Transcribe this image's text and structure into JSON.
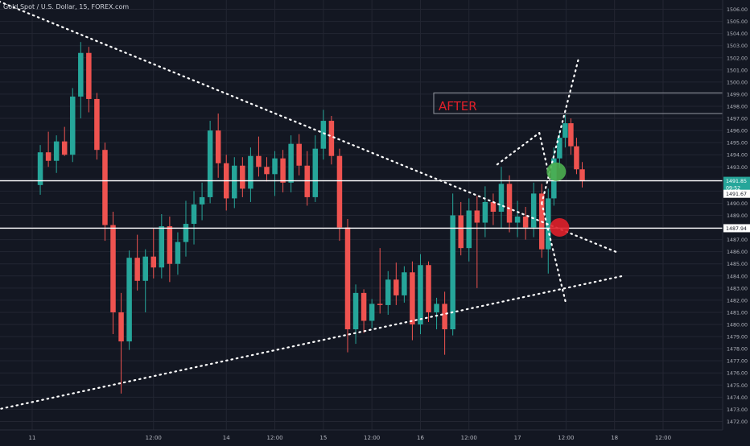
{
  "chart_data": {
    "type": "candlestick",
    "title": "Gold Spot / U.S. Dollar, 15, FOREX.com",
    "annotation_label": "AFTER",
    "colors": {
      "background": "#131722",
      "grid": "#232632",
      "up": "#26a69a",
      "down": "#ef5350",
      "axis_text": "#b2b5be",
      "level_line": "#ffffff",
      "green_marker": "#4caf50",
      "red_marker": "#e0202a",
      "last_price_badge": "#26a69a"
    },
    "y_ticks": [
      1472,
      1473,
      1474,
      1475,
      1476,
      1477,
      1478,
      1479,
      1480,
      1481,
      1482,
      1483,
      1484,
      1485,
      1486,
      1487,
      1488,
      1489,
      1490,
      1491,
      1492,
      1493,
      1494,
      1495,
      1496,
      1497,
      1498,
      1499,
      1500,
      1501,
      1502,
      1503,
      1504,
      1505,
      1506
    ],
    "ylim": [
      1471.5,
      1506.5
    ],
    "x_ticks": [
      {
        "label": "11",
        "t": 0
      },
      {
        "label": "12:00",
        "t": 15
      },
      {
        "label": "14",
        "t": 24
      },
      {
        "label": "12:00",
        "t": 30
      },
      {
        "label": "15",
        "t": 36
      },
      {
        "label": "12:00",
        "t": 42
      },
      {
        "label": "16",
        "t": 48
      },
      {
        "label": "12:00",
        "t": 54
      },
      {
        "label": "17",
        "t": 60
      },
      {
        "label": "12:00",
        "t": 66
      },
      {
        "label": "18",
        "t": 72
      },
      {
        "label": "12:00",
        "t": 78
      }
    ],
    "price_labels": [
      {
        "value": "1491.85",
        "price": 1491.85,
        "style": "current"
      },
      {
        "value": "09:52",
        "price": 1491.3,
        "style": "countdown"
      },
      {
        "value": "1491.67",
        "price": 1490.78,
        "style": "plain"
      },
      {
        "value": "1487.94",
        "price": 1487.94,
        "style": "plain"
      }
    ],
    "horizontal_levels": [
      1491.85,
      1487.94
    ],
    "trendlines": [
      {
        "from": [
          -6.5,
          1507.3
        ],
        "to": [
          72.5,
          1485.9
        ]
      },
      {
        "from": [
          -7,
          1472.6
        ],
        "to": [
          73,
          1484.0
        ]
      },
      {
        "from": [
          57.5,
          1493.2
        ],
        "to": [
          62.7,
          1495.8
        ]
      },
      {
        "from": [
          62.7,
          1495.8
        ],
        "to": [
          64.0,
          1492.0
        ]
      },
      {
        "from": [
          63.0,
          1490.0
        ],
        "to": [
          67.5,
          1501.8
        ]
      },
      {
        "from": [
          63.0,
          1490.0
        ],
        "to": [
          66.0,
          1481.7
        ]
      }
    ],
    "markers": [
      {
        "t": 64.8,
        "price": 1492.6,
        "color": "green_marker"
      },
      {
        "t": 65.2,
        "price": 1488.0,
        "color": "red_marker"
      }
    ],
    "annotation_box": {
      "t0": 50.0,
      "t1": 99,
      "price_top": 1499.1,
      "price_bottom": 1497.4
    },
    "ohlc": [
      [
        1,
        1491.5,
        1494.8,
        1490.7,
        1494.2
      ],
      [
        2,
        1494.2,
        1495.9,
        1493.0,
        1493.5
      ],
      [
        3,
        1493.5,
        1495.6,
        1492.5,
        1495.1
      ],
      [
        4,
        1495.1,
        1496.3,
        1493.9,
        1494.0
      ],
      [
        5,
        1494.0,
        1499.5,
        1493.4,
        1498.8
      ],
      [
        6,
        1498.8,
        1503.3,
        1497.0,
        1502.4
      ],
      [
        7,
        1502.4,
        1502.9,
        1497.5,
        1498.6
      ],
      [
        8,
        1498.6,
        1499.1,
        1493.6,
        1494.4
      ],
      [
        9,
        1494.4,
        1495.0,
        1486.9,
        1488.2
      ],
      [
        10,
        1488.2,
        1489.3,
        1479.2,
        1481.0
      ],
      [
        11,
        1481.0,
        1482.6,
        1474.3,
        1478.6
      ],
      [
        12,
        1478.6,
        1486.1,
        1477.9,
        1485.5
      ],
      [
        13,
        1485.5,
        1487.4,
        1482.8,
        1483.6
      ],
      [
        14,
        1483.6,
        1486.2,
        1481.0,
        1485.6
      ],
      [
        15,
        1485.6,
        1487.9,
        1483.8,
        1484.7
      ],
      [
        16,
        1484.7,
        1489.1,
        1483.8,
        1488.1
      ],
      [
        17,
        1488.1,
        1488.9,
        1483.5,
        1485.0
      ],
      [
        18,
        1485.0,
        1487.6,
        1484.1,
        1486.8
      ],
      [
        19,
        1486.8,
        1490.2,
        1485.6,
        1488.3
      ],
      [
        20,
        1488.3,
        1491.0,
        1486.6,
        1489.9
      ],
      [
        21,
        1489.9,
        1491.7,
        1488.6,
        1490.5
      ],
      [
        22,
        1490.5,
        1496.8,
        1490.0,
        1496.0
      ],
      [
        23,
        1496.0,
        1497.4,
        1492.1,
        1493.3
      ],
      [
        24,
        1493.3,
        1494.0,
        1489.4,
        1490.4
      ],
      [
        25,
        1490.4,
        1493.8,
        1489.6,
        1493.1
      ],
      [
        26,
        1493.1,
        1493.8,
        1490.5,
        1491.2
      ],
      [
        27,
        1491.2,
        1494.6,
        1490.1,
        1493.9
      ],
      [
        28,
        1493.9,
        1495.5,
        1492.2,
        1493.0
      ],
      [
        29,
        1493.0,
        1493.8,
        1491.8,
        1492.4
      ],
      [
        30,
        1492.4,
        1494.3,
        1490.6,
        1493.7
      ],
      [
        31,
        1493.7,
        1494.4,
        1490.9,
        1491.7
      ],
      [
        32,
        1491.7,
        1495.6,
        1490.9,
        1494.9
      ],
      [
        33,
        1494.9,
        1495.7,
        1492.3,
        1493.1
      ],
      [
        34,
        1493.1,
        1494.3,
        1489.8,
        1490.5
      ],
      [
        35,
        1490.5,
        1495.6,
        1490.1,
        1494.5
      ],
      [
        36,
        1494.5,
        1497.7,
        1493.6,
        1496.8
      ],
      [
        37,
        1496.8,
        1497.2,
        1493.2,
        1493.9
      ],
      [
        38,
        1493.9,
        1494.5,
        1486.9,
        1488.0
      ],
      [
        39,
        1488.0,
        1488.7,
        1477.7,
        1479.6
      ],
      [
        40,
        1479.6,
        1483.3,
        1478.4,
        1482.6
      ],
      [
        41,
        1482.6,
        1482.9,
        1479.3,
        1480.3
      ],
      [
        42,
        1480.3,
        1482.1,
        1479.7,
        1481.7
      ],
      [
        43,
        1481.7,
        1486.3,
        1480.9,
        1481.6
      ],
      [
        44,
        1481.6,
        1484.4,
        1480.8,
        1483.7
      ],
      [
        45,
        1483.7,
        1485.1,
        1481.6,
        1482.4
      ],
      [
        46,
        1482.4,
        1484.8,
        1481.8,
        1484.3
      ],
      [
        47,
        1484.3,
        1485.2,
        1478.7,
        1480.0
      ],
      [
        48,
        1480.0,
        1485.8,
        1479.2,
        1484.9
      ],
      [
        49,
        1484.9,
        1485.2,
        1480.2,
        1481.0
      ],
      [
        50,
        1481.0,
        1482.2,
        1479.6,
        1481.7
      ],
      [
        51,
        1481.7,
        1482.7,
        1477.5,
        1479.6
      ],
      [
        52,
        1479.6,
        1490.8,
        1479.1,
        1489.0
      ],
      [
        53,
        1489.0,
        1490.1,
        1485.7,
        1486.3
      ],
      [
        54,
        1486.3,
        1490.4,
        1485.2,
        1489.4
      ],
      [
        55,
        1489.4,
        1490.6,
        1483.0,
        1488.4
      ],
      [
        56,
        1488.4,
        1491.4,
        1487.2,
        1490.1
      ],
      [
        57,
        1490.1,
        1490.8,
        1488.2,
        1489.3
      ],
      [
        58,
        1489.3,
        1493.0,
        1487.9,
        1491.6
      ],
      [
        59,
        1491.6,
        1492.3,
        1487.6,
        1488.4
      ],
      [
        60,
        1488.4,
        1490.2,
        1487.2,
        1488.9
      ],
      [
        61,
        1488.9,
        1489.7,
        1487.0,
        1488.0
      ],
      [
        62,
        1488.0,
        1491.7,
        1487.2,
        1490.8
      ],
      [
        63,
        1490.8,
        1491.6,
        1485.5,
        1486.2
      ],
      [
        63.8,
        1486.2,
        1491.2,
        1484.2,
        1490.4
      ],
      [
        64.5,
        1490.4,
        1494.6,
        1489.8,
        1493.7
      ],
      [
        65.2,
        1493.7,
        1496.0,
        1492.9,
        1495.4
      ],
      [
        65.9,
        1495.4,
        1497.3,
        1494.6,
        1496.6
      ],
      [
        66.6,
        1496.6,
        1497.0,
        1494.0,
        1494.7
      ],
      [
        67.3,
        1494.7,
        1495.4,
        1492.4,
        1492.8
      ],
      [
        68.0,
        1492.8,
        1493.4,
        1491.3,
        1491.85
      ]
    ]
  }
}
